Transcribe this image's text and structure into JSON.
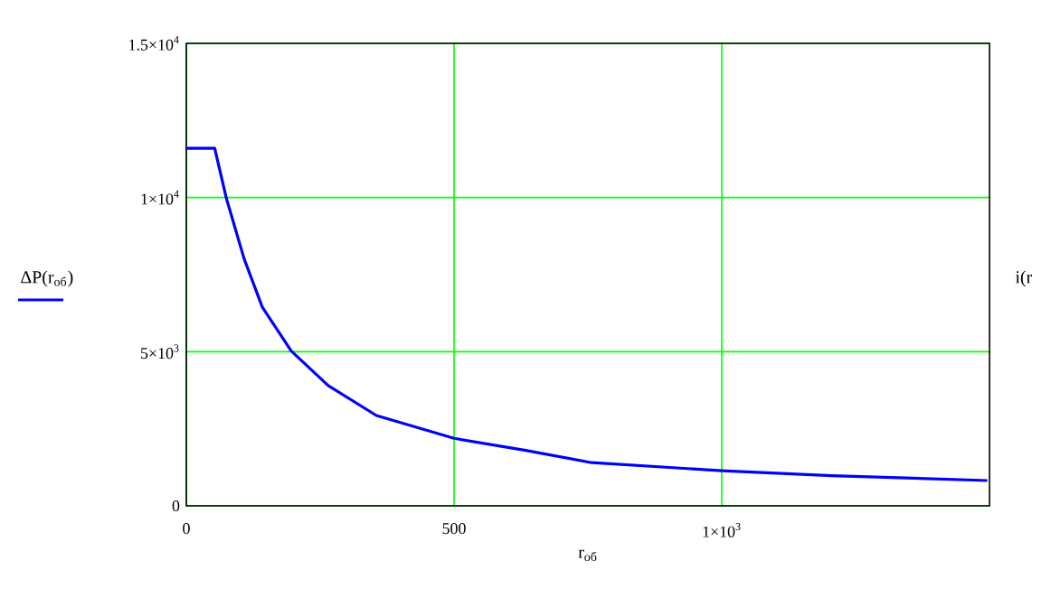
{
  "chart_data": {
    "type": "line",
    "xlabel": "r$_{об}$",
    "x": [
      0,
      53,
      75,
      108,
      142,
      196,
      265,
      355,
      500,
      634,
      757,
      1000,
      1205,
      1496
    ],
    "series": [
      {
        "name": "ΔP(r$_{об}$)",
        "color": "#0000ff",
        "values": [
          11600,
          11600,
          9960,
          8010,
          6440,
          5020,
          3900,
          2930,
          2190,
          1800,
          1400,
          1140,
          980,
          820
        ]
      }
    ],
    "xlim": [
      0,
      1500
    ],
    "ylim": [
      0,
      15000
    ],
    "xticks": [
      0,
      500,
      {
        "value": 1000,
        "label": "1×10$^{3}$"
      }
    ],
    "yticks": [
      0,
      {
        "value": 5000,
        "label": "5×10$^{3}$"
      },
      {
        "value": 10000,
        "label": "1×10$^{4}$"
      },
      {
        "value": 15000,
        "label": "1.5×10$^{4}$"
      }
    ],
    "grid": true,
    "legend": "left",
    "annotations": [
      "i(r"
    ]
  }
}
